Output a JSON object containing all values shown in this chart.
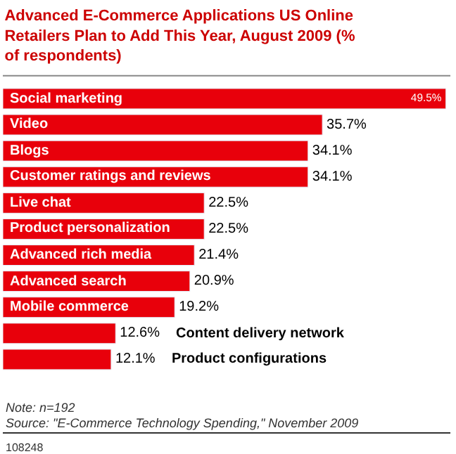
{
  "chart_data": {
    "type": "bar",
    "orientation": "horizontal",
    "title": "Advanced E-Commerce Applications US Online Retailers Plan to Add This Year, August 2009 (% of respondents)",
    "categories": [
      "Social marketing",
      "Video",
      "Blogs",
      "Customer ratings and reviews",
      "Live chat",
      "Product personalization",
      "Advanced rich media",
      "Advanced search",
      "Mobile commerce",
      "Content delivery network",
      "Product configurations"
    ],
    "values": [
      49.5,
      35.7,
      34.1,
      34.1,
      22.5,
      22.5,
      21.4,
      20.9,
      19.2,
      12.6,
      12.1
    ],
    "value_labels": [
      "49.5%",
      "35.7%",
      "34.1%",
      "34.1%",
      "22.5%",
      "22.5%",
      "21.4%",
      "20.9%",
      "19.2%",
      "12.6%",
      "12.1%"
    ],
    "color": "#e8000b",
    "xlim": [
      0,
      50
    ],
    "tick_labels": false,
    "annotations": [
      "Note: n=192",
      "Source: \"E-Commerce Technology Spending,\" November 2009",
      "108248"
    ]
  }
}
